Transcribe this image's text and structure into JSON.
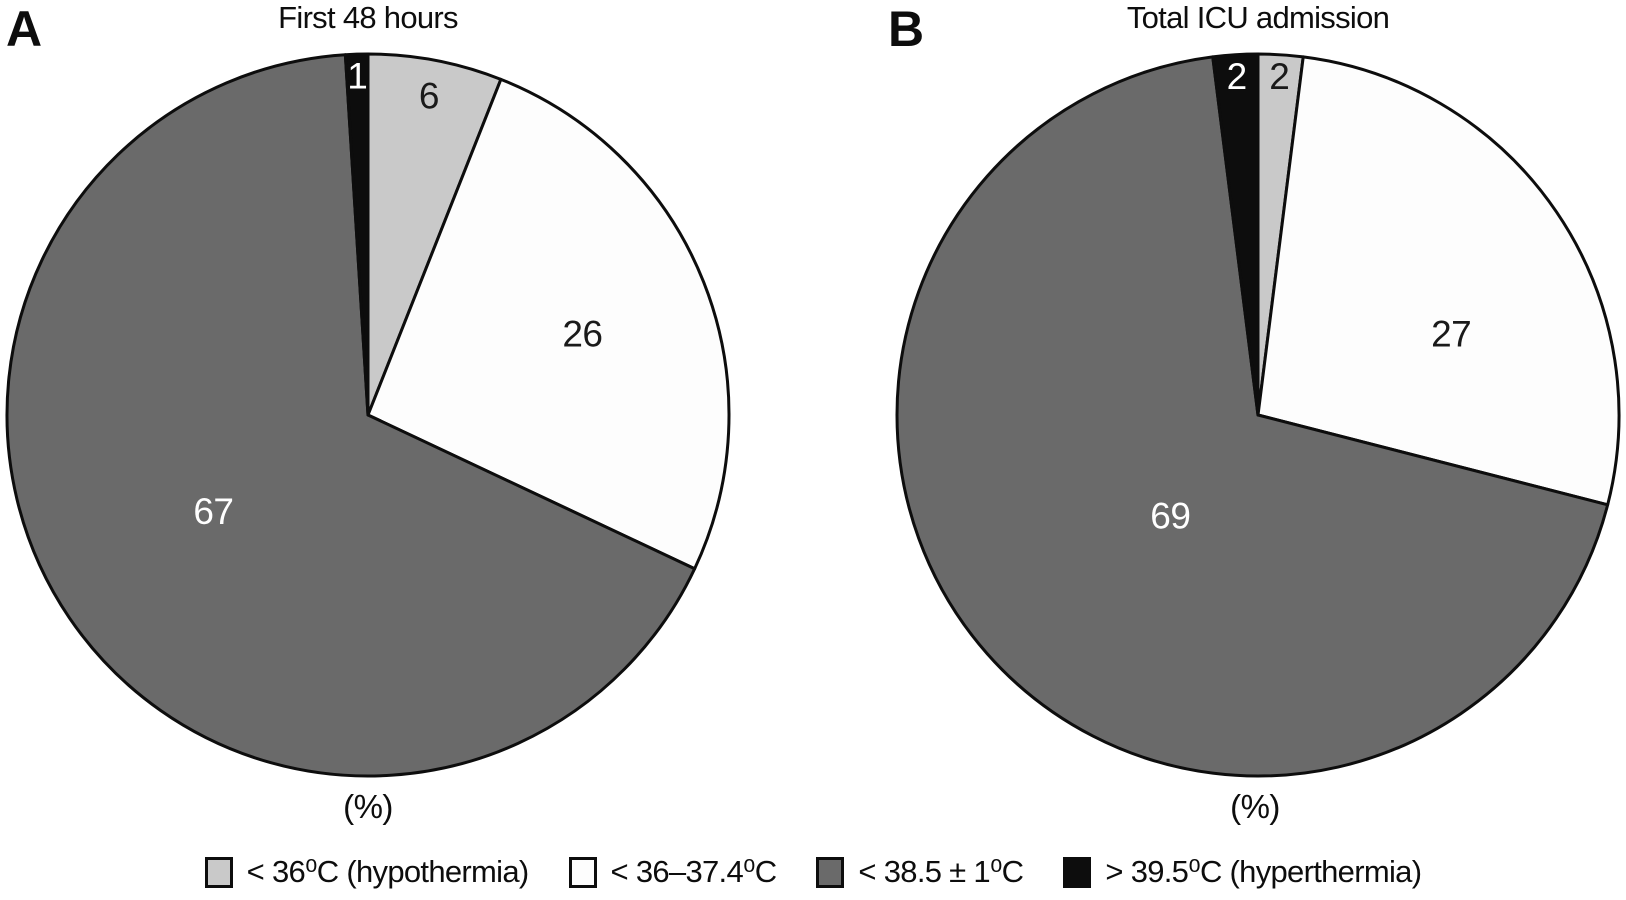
{
  "figure": {
    "panels": [
      {
        "letter": "A"
      },
      {
        "letter": "B"
      }
    ]
  },
  "chart_data": [
    {
      "type": "pie",
      "panel": "A",
      "title": "First 48 hours",
      "unit_label": "(%)",
      "categories": [
        "< 36⁰C (hypothermia)",
        "< 36–37.4⁰C",
        "< 38.5 ± 1⁰C",
        "> 39.5⁰C (hyperthermia)"
      ],
      "values": [
        6,
        26,
        67,
        1
      ],
      "start_angle_deg": 0,
      "direction": "clockwise",
      "data_labels": "values shown inside slices"
    },
    {
      "type": "pie",
      "panel": "B",
      "title": "Total ICU admission",
      "unit_label": "(%)",
      "categories": [
        "< 36⁰C (hypothermia)",
        "< 36–37.4⁰C",
        "< 38.5 ± 1⁰C",
        "> 39.5⁰C (hyperthermia)"
      ],
      "values": [
        2,
        27,
        69,
        2
      ],
      "start_angle_deg": 0,
      "direction": "clockwise",
      "data_labels": "values shown inside slices"
    }
  ],
  "legend": {
    "position": "bottom-center",
    "items": [
      {
        "label": "< 36⁰C (hypothermia)",
        "color": "#c9c9c9"
      },
      {
        "label": "< 36–37.4⁰C",
        "color": "#fdfdfd"
      },
      {
        "label": "< 38.5 ± 1⁰C",
        "color": "#6a6a6a"
      },
      {
        "label": "> 39.5⁰C (hyperthermia)",
        "color": "#0d0d0d"
      }
    ]
  },
  "colors": {
    "slice_colors": [
      "#c9c9c9",
      "#fdfdfd",
      "#6a6a6a",
      "#0d0d0d"
    ],
    "stroke": "#0d0d0d",
    "background": "#ffffff",
    "label_on_dark": "#ffffff",
    "label_on_light": "#1a1a1a"
  }
}
